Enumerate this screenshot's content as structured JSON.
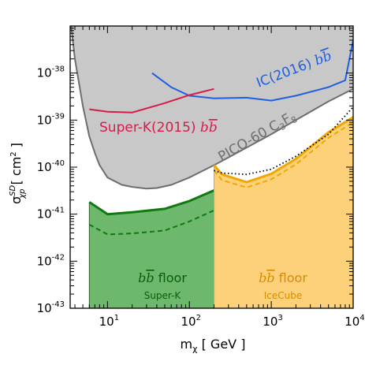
{
  "chart_data": {
    "type": "line",
    "xlabel": "mχ [ GeV ]",
    "ylabel": "σχpSD [ cm² ]",
    "xscale": "log",
    "yscale": "log",
    "xlim": [
      3.5,
      10000
    ],
    "ylim": [
      1e-43,
      1e-37
    ],
    "x_ticks": [
      {
        "value": 10,
        "base": "10",
        "exp": "1"
      },
      {
        "value": 100,
        "base": "10",
        "exp": "2"
      },
      {
        "value": 1000,
        "base": "10",
        "exp": "3"
      },
      {
        "value": 10000,
        "base": "10",
        "exp": "4"
      }
    ],
    "y_ticks": [
      {
        "value": 1e-43,
        "base": "10",
        "exp": "-43"
      },
      {
        "value": 1e-42,
        "base": "10",
        "exp": "-42"
      },
      {
        "value": 1e-41,
        "base": "10",
        "exp": "-41"
      },
      {
        "value": 1e-40,
        "base": "10",
        "exp": "-40"
      },
      {
        "value": 1e-39,
        "base": "10",
        "exp": "-39"
      },
      {
        "value": 1e-38,
        "base": "10",
        "exp": "-38"
      }
    ],
    "series": [
      {
        "name": "PICO-60 C3F8",
        "kind": "excluded_region",
        "color": "#c8c8c8",
        "edge_color": "#6e6e6e",
        "x": [
          3.6,
          4,
          5,
          6,
          7,
          8,
          10,
          15,
          20,
          30,
          40,
          60,
          100,
          200,
          300,
          500,
          1000,
          2000,
          5000,
          10000
        ],
        "y": [
          1e-37,
          2e-38,
          2e-39,
          4.5e-40,
          2e-40,
          1.1e-40,
          6e-41,
          4.2e-41,
          3.8e-41,
          3.5e-41,
          3.6e-41,
          4.2e-41,
          6e-41,
          1.1e-40,
          1.6e-40,
          2.6e-40,
          5e-40,
          1e-39,
          2.5e-39,
          4.6e-39
        ]
      },
      {
        "name": "b b̄ floor Super-K",
        "kind": "floor_region",
        "color": "#6db86d",
        "edge_color": "#0f7a0f",
        "x": [
          6,
          10,
          20,
          50,
          100,
          200
        ],
        "y": [
          1.8e-41,
          1e-41,
          1.1e-41,
          1.3e-41,
          1.9e-41,
          3.2e-41
        ]
      },
      {
        "name": "Super-K dashed",
        "kind": "dashed_line",
        "color": "#0f7a0f",
        "x": [
          6,
          10,
          20,
          50,
          100,
          200
        ],
        "y": [
          6e-42,
          3.7e-42,
          3.9e-42,
          4.5e-42,
          7e-42,
          1.2e-41
        ]
      },
      {
        "name": "b b̄ floor IceCube",
        "kind": "floor_region",
        "color": "#fdd07a",
        "edge_color": "#f0a800",
        "x": [
          200,
          250,
          500,
          1000,
          2000,
          5000,
          10000
        ],
        "y": [
          1.1e-40,
          7e-41,
          4.8e-41,
          7.2e-41,
          1.5e-40,
          5.5e-40,
          1.15e-39
        ]
      },
      {
        "name": "IceCube dashed",
        "kind": "dashed_line",
        "color": "#f0a800",
        "x": [
          200,
          250,
          500,
          1000,
          2000,
          5000,
          10000
        ],
        "y": [
          8.5e-41,
          5.3e-41,
          3.7e-41,
          5.5e-41,
          1.15e-40,
          4.2e-40,
          9e-40
        ]
      },
      {
        "name": "dotted reference",
        "kind": "dotted_line",
        "color": "#000000",
        "x": [
          200,
          250,
          500,
          1000,
          2000,
          5000,
          10000
        ],
        "y": [
          8.5e-41,
          7.5e-41,
          7e-41,
          9e-41,
          1.7e-40,
          5e-40,
          1.9e-39
        ]
      },
      {
        "name": "IC(2016) b b̄",
        "kind": "limit_line",
        "color": "#1f5fe0",
        "x": [
          35,
          60,
          100,
          200,
          500,
          1000,
          2000,
          5000,
          8000,
          10000
        ],
        "y": [
          1e-38,
          5e-39,
          3.3e-39,
          2.9e-39,
          3e-39,
          2.6e-39,
          3.3e-39,
          5e-39,
          7e-39,
          5e-38
        ]
      },
      {
        "name": "Super-K(2015) b b̄",
        "kind": "limit_line",
        "color": "#d81b4a",
        "x": [
          6,
          10,
          20,
          50,
          100,
          200
        ],
        "y": [
          1.7e-39,
          1.5e-39,
          1.45e-39,
          2.3e-39,
          3.4e-39,
          4.6e-39
        ]
      }
    ],
    "annotations": [
      {
        "key": "ic",
        "text": "IC(2016)"
      },
      {
        "key": "sk",
        "text": "Super-K(2015)"
      },
      {
        "key": "pico",
        "text": "PICO-60 C"
      },
      {
        "key": "floor_sk",
        "text": "floor"
      },
      {
        "key": "floor_sk_sub",
        "text": "Super-K"
      },
      {
        "key": "floor_ic",
        "text": "floor"
      },
      {
        "key": "floor_ic_sub",
        "text": "IceCube"
      }
    ]
  }
}
